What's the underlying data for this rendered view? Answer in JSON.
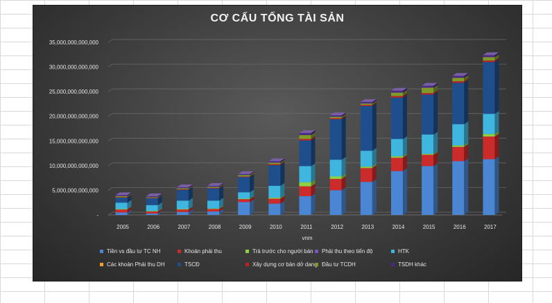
{
  "chart_data": {
    "type": "bar",
    "stacked": true,
    "three_d": true,
    "title": "CƠ CẤU TỔNG TÀI SẢN",
    "xlabel": "vnm",
    "ylabel": "",
    "ylim": [
      0,
      35000000000000
    ],
    "yticks": [
      0,
      5000000000000,
      10000000000000,
      15000000000000,
      20000000000000,
      25000000000000,
      30000000000000,
      35000000000000
    ],
    "ytick_labels": [
      "-",
      "5,000,000,000,000",
      "10,000,000,000,000",
      "15,000,000,000,000",
      "20,000,000,000,000",
      "25,000,000,000,000",
      "30,000,000,000,000",
      "35,000,000,000,000"
    ],
    "grid": true,
    "legend_position": "bottom",
    "categories": [
      "2005",
      "2006",
      "2007",
      "2008",
      "2009",
      "2010",
      "2011",
      "2012",
      "2013",
      "2014",
      "2015",
      "2016",
      "2017"
    ],
    "series": [
      {
        "name": "Tiền vs đầu tư TC NH",
        "color": "#4a86d4",
        "values": [
          500000000000,
          300000000000,
          600000000000,
          700000000000,
          2600000000000,
          2300000000000,
          3800000000000,
          5000000000000,
          6700000000000,
          8900000000000,
          9900000000000,
          10900000000000,
          11300000000000
        ]
      },
      {
        "name": "Khoản phải thu",
        "color": "#cc2b2b",
        "values": [
          600000000000,
          400000000000,
          500000000000,
          500000000000,
          600000000000,
          1000000000000,
          2000000000000,
          2300000000000,
          2800000000000,
          2700000000000,
          2300000000000,
          2900000000000,
          4600000000000
        ]
      },
      {
        "name": "Trả trước cho người bán",
        "color": "#8fd13f",
        "values": [
          100000000000,
          100000000000,
          100000000000,
          100000000000,
          100000000000,
          200000000000,
          800000000000,
          500000000000,
          300000000000,
          300000000000,
          200000000000,
          300000000000,
          500000000000
        ]
      },
      {
        "name": "Phải thu theo tiến độ",
        "color": "#7a55b8",
        "values": [
          0,
          0,
          0,
          0,
          0,
          0,
          0,
          0,
          0,
          0,
          0,
          0,
          0
        ]
      },
      {
        "name": "HTK",
        "color": "#3fb6e0",
        "values": [
          1300000000000,
          1200000000000,
          1700000000000,
          1600000000000,
          1300000000000,
          2400000000000,
          3300000000000,
          3400000000000,
          3200000000000,
          3500000000000,
          3900000000000,
          4300000000000,
          4100000000000
        ]
      },
      {
        "name": "Các khoản Phải thu DH",
        "color": "#f59a2f",
        "values": [
          0,
          0,
          0,
          0,
          0,
          0,
          0,
          0,
          0,
          0,
          0,
          0,
          0
        ]
      },
      {
        "name": "TSCĐ",
        "color": "#1f4e8c",
        "values": [
          1000000000000,
          1400000000000,
          2200000000000,
          2500000000000,
          3100000000000,
          4200000000000,
          5200000000000,
          8200000000000,
          9100000000000,
          8400000000000,
          8100000000000,
          8400000000000,
          10500000000000
        ]
      },
      {
        "name": "Xây dựng cơ bản dở dang",
        "color": "#c02020",
        "values": [
          100000000000,
          50000000000,
          100000000000,
          100000000000,
          100000000000,
          200000000000,
          300000000000,
          200000000000,
          200000000000,
          300000000000,
          300000000000,
          300000000000,
          300000000000
        ]
      },
      {
        "name": "Đầu tư TCDH",
        "color": "#7f9a2a",
        "values": [
          200000000000,
          150000000000,
          200000000000,
          200000000000,
          300000000000,
          300000000000,
          800000000000,
          300000000000,
          300000000000,
          700000000000,
          1100000000000,
          700000000000,
          700000000000
        ]
      },
      {
        "name": "TSDH khác",
        "color": "#4b2a86",
        "values": [
          200000000000,
          200000000000,
          200000000000,
          200000000000,
          200000000000,
          300000000000,
          400000000000,
          300000000000,
          300000000000,
          400000000000,
          400000000000,
          400000000000,
          400000000000
        ]
      }
    ]
  }
}
